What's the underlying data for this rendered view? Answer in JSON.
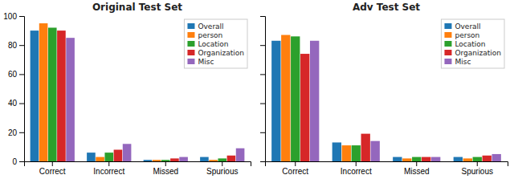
{
  "chart_data": [
    {
      "type": "bar",
      "title": "Original Test Set",
      "categories": [
        "Correct",
        "Incorrect",
        "Missed",
        "Spurious"
      ],
      "series": [
        {
          "name": "Overall",
          "color": "#1f77b4",
          "values": [
            90,
            6,
            1,
            3
          ]
        },
        {
          "name": "person",
          "color": "#ff7f0e",
          "values": [
            95,
            3,
            1,
            1
          ]
        },
        {
          "name": "Location",
          "color": "#2ca02c",
          "values": [
            92,
            6,
            1,
            2
          ]
        },
        {
          "name": "Organization",
          "color": "#d62728",
          "values": [
            90,
            8,
            2,
            4
          ]
        },
        {
          "name": "Misc",
          "color": "#9467bd",
          "values": [
            85,
            12,
            3,
            9
          ]
        }
      ],
      "ylim": [
        0,
        100
      ],
      "yticks": [
        0,
        20,
        40,
        60,
        80,
        100
      ],
      "grid": false,
      "legend": "upper right"
    },
    {
      "type": "bar",
      "title": "Adv Test Set",
      "categories": [
        "Correct",
        "Incorrect",
        "Missed",
        "Spurious"
      ],
      "series": [
        {
          "name": "Overall",
          "color": "#1f77b4",
          "values": [
            83,
            13,
            3,
            3
          ]
        },
        {
          "name": "person",
          "color": "#ff7f0e",
          "values": [
            87,
            11,
            2,
            2
          ]
        },
        {
          "name": "Location",
          "color": "#2ca02c",
          "values": [
            86,
            11,
            3,
            3
          ]
        },
        {
          "name": "Organization",
          "color": "#d62728",
          "values": [
            74,
            19,
            3,
            4
          ]
        },
        {
          "name": "Misc",
          "color": "#9467bd",
          "values": [
            83,
            14,
            3,
            5
          ]
        }
      ],
      "ylim": [
        0,
        100
      ],
      "yticks": [
        0,
        20,
        40,
        60,
        80,
        100
      ],
      "grid": false,
      "legend": "upper right",
      "tick_labels": "x"
    }
  ]
}
